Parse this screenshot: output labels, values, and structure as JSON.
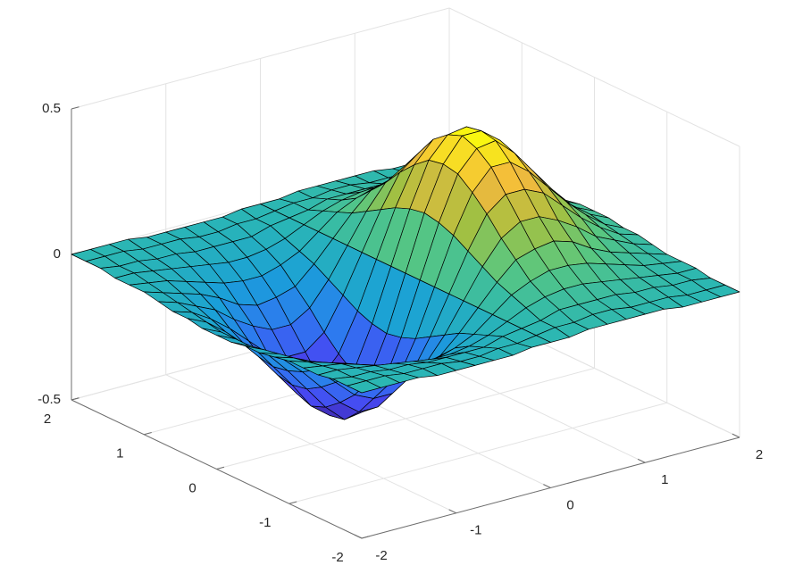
{
  "chart_data": {
    "type": "surface",
    "x": [
      -2,
      -1.8,
      -1.6,
      -1.4,
      -1.2,
      -1,
      -0.8,
      -0.6,
      -0.4,
      -0.2,
      0,
      0.2,
      0.4,
      0.6,
      0.8,
      1,
      1.2,
      1.4,
      1.6,
      1.8,
      2
    ],
    "y": [
      -2,
      -1.8,
      -1.6,
      -1.4,
      -1.2,
      -1,
      -0.8,
      -0.6,
      -0.4,
      -0.2,
      0,
      0.2,
      0.4,
      0.6,
      0.8,
      1,
      1.2,
      1.4,
      1.6,
      1.8,
      2
    ],
    "z": [
      [
        0,
        0,
        0,
        0,
        -0.01,
        -0.01,
        -0.01,
        -0.01,
        -0.01,
        0,
        0,
        0,
        0.01,
        0.01,
        0.01,
        0.01,
        0.01,
        0,
        0,
        0,
        0
      ],
      [
        0,
        0,
        0,
        -0.01,
        -0.01,
        -0.01,
        -0.02,
        -0.02,
        -0.01,
        -0.01,
        0,
        0.01,
        0.01,
        0.02,
        0.02,
        0.01,
        0.01,
        0.01,
        0,
        0,
        0
      ],
      [
        0,
        -0.01,
        -0.01,
        -0.02,
        -0.02,
        -0.03,
        -0.03,
        -0.03,
        -0.03,
        -0.01,
        0,
        0.01,
        0.03,
        0.03,
        0.03,
        0.03,
        0.02,
        0.02,
        0.01,
        0.01,
        0
      ],
      [
        -0.01,
        -0.01,
        -0.02,
        -0.03,
        -0.04,
        -0.05,
        -0.06,
        -0.06,
        -0.05,
        -0.03,
        0,
        0.03,
        0.05,
        0.06,
        0.06,
        0.05,
        0.04,
        0.03,
        0.02,
        0.01,
        0.01
      ],
      [
        -0.01,
        -0.02,
        -0.03,
        -0.05,
        -0.07,
        -0.09,
        -0.1,
        -0.1,
        -0.08,
        -0.05,
        0,
        0.05,
        0.08,
        0.1,
        0.1,
        0.09,
        0.07,
        0.05,
        0.03,
        0.02,
        0.01
      ],
      [
        -0.01,
        -0.03,
        -0.05,
        -0.07,
        -0.1,
        -0.14,
        -0.16,
        -0.15,
        -0.13,
        -0.07,
        0,
        0.07,
        0.13,
        0.15,
        0.16,
        0.14,
        0.1,
        0.07,
        0.05,
        0.03,
        0.01
      ],
      [
        -0.02,
        -0.04,
        -0.07,
        -0.1,
        -0.15,
        -0.19,
        -0.22,
        -0.22,
        -0.18,
        -0.1,
        0,
        0.1,
        0.18,
        0.22,
        0.22,
        0.19,
        0.15,
        0.1,
        0.07,
        0.04,
        0.02
      ],
      [
        -0.03,
        -0.05,
        -0.09,
        -0.14,
        -0.2,
        -0.26,
        -0.29,
        -0.29,
        -0.24,
        -0.13,
        0,
        0.13,
        0.24,
        0.29,
        0.29,
        0.26,
        0.2,
        0.14,
        0.09,
        0.05,
        0.03
      ],
      [
        -0.03,
        -0.06,
        -0.11,
        -0.17,
        -0.24,
        -0.31,
        -0.36,
        -0.36,
        -0.29,
        -0.16,
        0,
        0.16,
        0.29,
        0.36,
        0.36,
        0.31,
        0.24,
        0.17,
        0.11,
        0.06,
        0.03
      ],
      [
        -0.04,
        -0.07,
        -0.12,
        -0.19,
        -0.27,
        -0.35,
        -0.41,
        -0.4,
        -0.33,
        -0.18,
        0,
        0.18,
        0.33,
        0.4,
        0.41,
        0.35,
        0.27,
        0.19,
        0.12,
        0.07,
        0.04
      ],
      [
        -0.04,
        -0.07,
        -0.12,
        -0.2,
        -0.28,
        -0.37,
        -0.42,
        -0.42,
        -0.34,
        -0.19,
        0,
        0.19,
        0.34,
        0.42,
        0.42,
        0.37,
        0.28,
        0.2,
        0.12,
        0.07,
        0.04
      ],
      [
        -0.04,
        -0.07,
        -0.12,
        -0.19,
        -0.27,
        -0.35,
        -0.41,
        -0.4,
        -0.33,
        -0.18,
        0,
        0.18,
        0.33,
        0.4,
        0.41,
        0.35,
        0.27,
        0.19,
        0.12,
        0.07,
        0.04
      ],
      [
        -0.03,
        -0.06,
        -0.11,
        -0.17,
        -0.24,
        -0.31,
        -0.36,
        -0.36,
        -0.29,
        -0.16,
        0,
        0.16,
        0.29,
        0.36,
        0.36,
        0.31,
        0.24,
        0.17,
        0.11,
        0.06,
        0.03
      ],
      [
        -0.03,
        -0.05,
        -0.09,
        -0.14,
        -0.2,
        -0.26,
        -0.29,
        -0.29,
        -0.24,
        -0.13,
        0,
        0.13,
        0.24,
        0.29,
        0.29,
        0.26,
        0.2,
        0.14,
        0.09,
        0.05,
        0.03
      ],
      [
        -0.02,
        -0.04,
        -0.07,
        -0.1,
        -0.15,
        -0.19,
        -0.22,
        -0.22,
        -0.18,
        -0.1,
        0,
        0.1,
        0.18,
        0.22,
        0.22,
        0.19,
        0.15,
        0.1,
        0.07,
        0.04,
        0.02
      ],
      [
        -0.01,
        -0.03,
        -0.05,
        -0.07,
        -0.1,
        -0.14,
        -0.16,
        -0.15,
        -0.13,
        -0.07,
        0,
        0.07,
        0.13,
        0.15,
        0.16,
        0.14,
        0.1,
        0.07,
        0.05,
        0.03,
        0.01
      ],
      [
        -0.01,
        -0.02,
        -0.03,
        -0.05,
        -0.07,
        -0.09,
        -0.1,
        -0.1,
        -0.08,
        -0.05,
        0,
        0.05,
        0.08,
        0.1,
        0.1,
        0.09,
        0.07,
        0.05,
        0.03,
        0.02,
        0.01
      ],
      [
        -0.01,
        -0.01,
        -0.02,
        -0.03,
        -0.04,
        -0.05,
        -0.06,
        -0.06,
        -0.05,
        -0.03,
        0,
        0.03,
        0.05,
        0.06,
        0.06,
        0.05,
        0.04,
        0.03,
        0.02,
        0.01,
        0.01
      ],
      [
        0,
        -0.01,
        -0.01,
        -0.02,
        -0.02,
        -0.03,
        -0.03,
        -0.03,
        -0.03,
        -0.01,
        0,
        0.01,
        0.03,
        0.03,
        0.03,
        0.03,
        0.02,
        0.02,
        0.01,
        0.01,
        0
      ],
      [
        0,
        0,
        0,
        -0.01,
        -0.01,
        -0.01,
        -0.02,
        -0.02,
        -0.01,
        -0.01,
        0,
        0.01,
        0.01,
        0.02,
        0.02,
        0.01,
        0.01,
        0.01,
        0,
        0,
        0
      ],
      [
        0,
        0,
        0,
        0,
        -0.01,
        -0.01,
        -0.01,
        -0.01,
        -0.01,
        0,
        0,
        0,
        0.01,
        0.01,
        0.01,
        0.01,
        0.01,
        0,
        0,
        0,
        0
      ]
    ],
    "xlim": [
      -2,
      2
    ],
    "ylim": [
      -2,
      2
    ],
    "zlim": [
      -0.5,
      0.5
    ],
    "xticks": [
      -2,
      -1,
      0,
      1,
      2
    ],
    "yticks": [
      -2,
      -1,
      0,
      1,
      2
    ],
    "zticks": [
      -0.5,
      0,
      0.5
    ],
    "grid": true,
    "colormap": [
      "#3e26a8",
      "#4748f2",
      "#2e78f0",
      "#1a9fd9",
      "#2bb7b3",
      "#5ac77f",
      "#a5c040",
      "#f4b93e",
      "#f9fb0e"
    ],
    "edgecolor": "#000000"
  }
}
